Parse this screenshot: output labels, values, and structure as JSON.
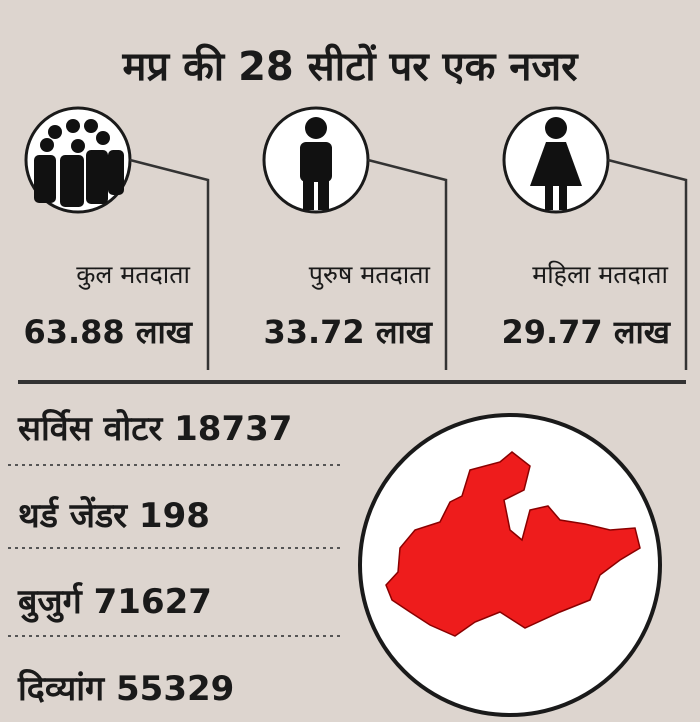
{
  "header": {
    "title": "मप्र की 28 सीटों पर एक नजर"
  },
  "stats": [
    {
      "label": "कुल मतदाता",
      "value": "63.88 लाख"
    },
    {
      "label": "पुरुष मतदाता",
      "value": "33.72 लाख"
    },
    {
      "label": "महिला मतदाता",
      "value": "29.77 लाख"
    }
  ],
  "list": [
    {
      "label": "सर्विस वोटर",
      "value": "18737"
    },
    {
      "label": "थर्ड जेंडर",
      "value": "198"
    },
    {
      "label": "बुजुर्ग",
      "value": "71627"
    },
    {
      "label": "दिव्यांग",
      "value": "55329"
    }
  ]
}
